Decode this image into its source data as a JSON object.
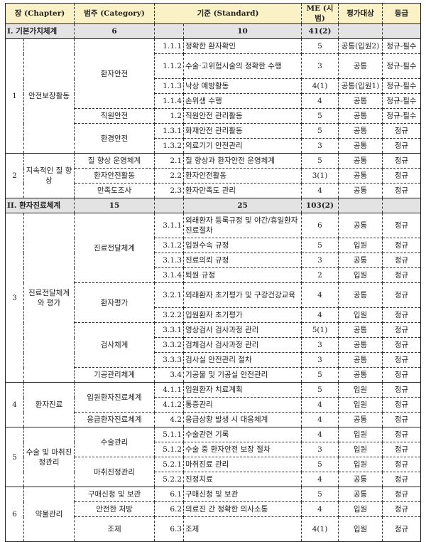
{
  "headers": {
    "chapter": "장 (Chapter)",
    "category": "범주 (Category)",
    "standard": "기준 (Standard)",
    "me": "ME (시범)",
    "target": "평가대상",
    "grade": "등급"
  },
  "sections": [
    {
      "label": "I. 기본가치체계",
      "categories": "6",
      "standards": "10",
      "me": "41(2)",
      "chapters": [
        {
          "num": "1",
          "name": "안전보장활동",
          "categories": [
            {
              "name": "환자안전",
              "standards": [
                {
                  "code": "1.1.1",
                  "title": "정확한 환자확인",
                  "me": "5",
                  "target": "공통(입원2)",
                  "grade": "정규-필수"
                },
                {
                  "code": "1.1.2",
                  "title": "수술·고위험시술의 정확한 수행",
                  "me": "3",
                  "target": "공통",
                  "grade": "정규-필수",
                  "tall": true
                },
                {
                  "code": "1.1.3",
                  "title": "낙상 예방활동",
                  "me": "4(1)",
                  "target": "공통(입원1)",
                  "grade": "정규-필수"
                },
                {
                  "code": "1.1.4",
                  "title": "손위생 수행",
                  "me": "4",
                  "target": "공통",
                  "grade": "정규-필수"
                }
              ]
            },
            {
              "name": "직원안전",
              "standards": [
                {
                  "code": "1.2",
                  "title": "직원안전 관리활동",
                  "me": "5",
                  "target": "공통",
                  "grade": "정규-필수"
                }
              ]
            },
            {
              "name": "환경안전",
              "standards": [
                {
                  "code": "1.3.1",
                  "title": "화재안전 관리활동",
                  "me": "5",
                  "target": "공통",
                  "grade": "정규"
                },
                {
                  "code": "1.3.2",
                  "title": "의료기기 안전관리",
                  "me": "3",
                  "target": "공통",
                  "grade": "정규"
                }
              ]
            }
          ]
        },
        {
          "num": "2",
          "name": "지속적인 질 향상",
          "categories": [
            {
              "name": "질 향상 운영체계",
              "standards": [
                {
                  "code": "2.1",
                  "title": "질 향상과 환자안전 운영체계",
                  "me": "5",
                  "target": "공통",
                  "grade": "정규"
                }
              ]
            },
            {
              "name": "환자안전활동",
              "standards": [
                {
                  "code": "2.2",
                  "title": "환자안전활동",
                  "me": "3(1)",
                  "target": "공통",
                  "grade": "정규"
                }
              ]
            },
            {
              "name": "만족도조사",
              "standards": [
                {
                  "code": "2.3",
                  "title": "환자만족도 관리",
                  "me": "4",
                  "target": "공통",
                  "grade": "정규"
                }
              ]
            }
          ]
        }
      ]
    },
    {
      "label": "II. 환자진료체계",
      "categories": "15",
      "standards": "25",
      "me": "103(2)",
      "chapters": [
        {
          "num": "3",
          "name": "진료전달체계와 평가",
          "categories": [
            {
              "name": "진료전달체계",
              "standards": [
                {
                  "code": "3.1.1",
                  "title": "외래환자 등록규정 및 야간/휴일환자 진료절차",
                  "me": "6",
                  "target": "공통",
                  "grade": "정규",
                  "tall": true
                },
                {
                  "code": "3.1.2",
                  "title": "입원수속 규정",
                  "me": "5",
                  "target": "입원",
                  "grade": "정규"
                },
                {
                  "code": "3.1.3",
                  "title": "진료의뢰 규정",
                  "me": "3",
                  "target": "공통",
                  "grade": "정규"
                },
                {
                  "code": "3.1.4",
                  "title": "퇴원 규정",
                  "me": "2",
                  "target": "입원",
                  "grade": "정규"
                }
              ]
            },
            {
              "name": "환자평가",
              "standards": [
                {
                  "code": "3.2.1",
                  "title": "외래환자 초기평가 및 구강건강교육",
                  "me": "4",
                  "target": "공통",
                  "grade": "정규",
                  "tall": true
                },
                {
                  "code": "3.2.2",
                  "title": "입원환자 초기평가",
                  "me": "4",
                  "target": "입원",
                  "grade": "정규"
                }
              ]
            },
            {
              "name": "검사체계",
              "standards": [
                {
                  "code": "3.3.1",
                  "title": "영상검사 검사과정 관리",
                  "me": "5(1)",
                  "target": "공통",
                  "grade": "정규"
                },
                {
                  "code": "3.3.2",
                  "title": "검체검사 검사과정 관리",
                  "me": "3",
                  "target": "공통",
                  "grade": "정규"
                },
                {
                  "code": "3.3.3",
                  "title": "검사실 안전관리 절차",
                  "me": "3",
                  "target": "공통",
                  "grade": "정규"
                }
              ]
            },
            {
              "name": "기공관리체계",
              "standards": [
                {
                  "code": "3.4",
                  "title": "기공물 및 기공실 안전관리",
                  "me": "5",
                  "target": "공통",
                  "grade": "정규"
                }
              ]
            }
          ]
        },
        {
          "num": "4",
          "name": "환자진료",
          "categories": [
            {
              "name": "입원환자진료체계",
              "standards": [
                {
                  "code": "4.1.1",
                  "title": "입원환자 치료계획",
                  "me": "5",
                  "target": "입원",
                  "grade": "정규"
                },
                {
                  "code": "4.1.2",
                  "title": "통증관리",
                  "me": "4",
                  "target": "입원",
                  "grade": "정규"
                }
              ]
            },
            {
              "name": "응급환자진료체계",
              "standards": [
                {
                  "code": "4.2",
                  "title": "응급상황 발생 시 대응체계",
                  "me": "4",
                  "target": "공통",
                  "grade": "정규"
                }
              ]
            }
          ]
        },
        {
          "num": "5",
          "name": "수술 및 마취진정관리",
          "categories": [
            {
              "name": "수술관리",
              "standards": [
                {
                  "code": "5.1.1",
                  "title": "수술관련 기록",
                  "me": "4",
                  "target": "입원",
                  "grade": "정규"
                },
                {
                  "code": "5.1.2",
                  "title": "수술 중 환자안전 보장 절차",
                  "me": "3",
                  "target": "입원",
                  "grade": "정규"
                }
              ]
            },
            {
              "name": "마취진정관리",
              "standards": [
                {
                  "code": "5.2.1",
                  "title": "마취진료 관리",
                  "me": "5",
                  "target": "입원",
                  "grade": "정규"
                },
                {
                  "code": "5.2.2",
                  "title": "진정치료",
                  "me": "4",
                  "target": "공통",
                  "grade": "정규"
                }
              ]
            }
          ]
        },
        {
          "num": "6",
          "name": "약물관리",
          "categories": [
            {
              "name": "구매신청 및 보관",
              "standards": [
                {
                  "code": "6.1",
                  "title": "구매신청 및 보관",
                  "me": "5",
                  "target": "공통",
                  "grade": "정규"
                }
              ]
            },
            {
              "name": "안전한 처방",
              "standards": [
                {
                  "code": "6.2",
                  "title": "의료진 간 정확한 의사소통",
                  "me": "4",
                  "target": "입원",
                  "grade": "정규"
                }
              ]
            },
            {
              "name": "조제",
              "standards": [
                {
                  "code": "6.3",
                  "title": "조제",
                  "me": "4(1)",
                  "target": "입원",
                  "grade": "정규",
                  "tall": true
                }
              ]
            }
          ]
        }
      ]
    }
  ]
}
